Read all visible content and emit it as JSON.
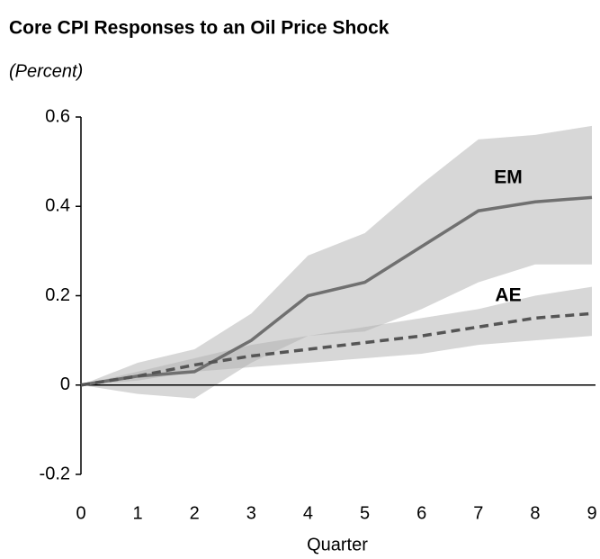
{
  "chart_data": {
    "type": "line",
    "title": "Core CPI Responses to an Oil Price Shock",
    "subtitle": "(Percent)",
    "x_label": "Quarter",
    "x": [
      0,
      1,
      2,
      3,
      4,
      5,
      6,
      7,
      8,
      9
    ],
    "series": [
      {
        "name": "EM",
        "color": "#707070",
        "dash": false,
        "values": [
          0,
          0.02,
          0.03,
          0.1,
          0.2,
          0.23,
          0.31,
          0.39,
          0.41,
          0.42
        ],
        "upper": [
          0,
          0.05,
          0.08,
          0.16,
          0.29,
          0.34,
          0.45,
          0.55,
          0.56,
          0.58
        ],
        "lower": [
          0,
          -0.02,
          -0.03,
          0.05,
          0.11,
          0.12,
          0.17,
          0.23,
          0.27,
          0.27
        ]
      },
      {
        "name": "AE",
        "color": "#555555",
        "dash": true,
        "values": [
          0,
          0.02,
          0.045,
          0.065,
          0.08,
          0.095,
          0.11,
          0.13,
          0.15,
          0.16
        ],
        "upper": [
          0,
          0.03,
          0.06,
          0.09,
          0.11,
          0.13,
          0.15,
          0.17,
          0.2,
          0.22
        ],
        "lower": [
          0,
          0.01,
          0.03,
          0.04,
          0.05,
          0.06,
          0.07,
          0.09,
          0.1,
          0.11
        ]
      }
    ],
    "band_color": "#b0b0b0",
    "xlim": [
      0,
      9
    ],
    "xticks": [
      0,
      1,
      2,
      3,
      4,
      5,
      6,
      7,
      8,
      9
    ],
    "ylim": [
      -0.2,
      0.6
    ],
    "yticks": [
      -0.2,
      0,
      0.2,
      0.4,
      0.6
    ]
  }
}
